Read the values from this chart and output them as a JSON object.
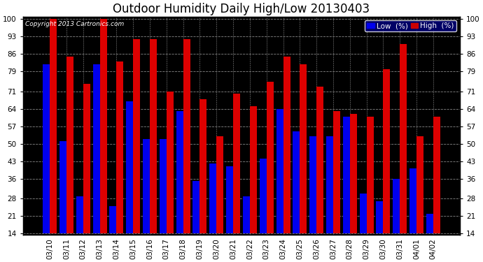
{
  "title": "Outdoor Humidity Daily High/Low 20130403",
  "copyright": "Copyright 2013 Cartronics.com",
  "legend_low": "Low  (%)",
  "legend_high": "High  (%)",
  "dates": [
    "03/10",
    "03/11",
    "03/12",
    "03/13",
    "03/14",
    "03/15",
    "03/16",
    "03/17",
    "03/18",
    "03/19",
    "03/20",
    "03/21",
    "03/22",
    "03/23",
    "03/24",
    "03/25",
    "03/26",
    "03/27",
    "03/28",
    "03/29",
    "03/30",
    "03/31",
    "04/01",
    "04/02"
  ],
  "low": [
    82,
    51,
    29,
    82,
    25,
    67,
    52,
    52,
    63,
    35,
    42,
    41,
    29,
    44,
    64,
    55,
    53,
    53,
    61,
    30,
    27,
    36,
    40,
    22
  ],
  "high": [
    100,
    85,
    74,
    100,
    83,
    92,
    92,
    71,
    92,
    68,
    53,
    70,
    65,
    75,
    85,
    82,
    73,
    63,
    62,
    61,
    80,
    90,
    53,
    61
  ],
  "bg_color": "#000000",
  "plot_bg_color": "#000000",
  "bar_color_low": "#0000ee",
  "bar_color_high": "#dd0000",
  "grid_color": "#888888",
  "ylim_min": 14,
  "ylim_max": 100,
  "yticks": [
    14,
    21,
    28,
    36,
    43,
    50,
    57,
    64,
    71,
    79,
    86,
    93,
    100
  ],
  "bar_width": 0.42,
  "title_fontsize": 12,
  "tick_fontsize": 7.5,
  "legend_fontsize": 7.5,
  "title_color": "#000000",
  "tick_color": "#000000",
  "legend_bg": "#000080",
  "legend_high_bg": "#cc0000"
}
